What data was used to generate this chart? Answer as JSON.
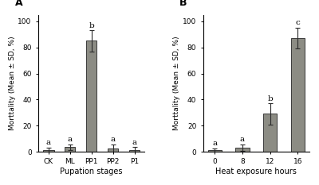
{
  "panel_A": {
    "categories": [
      "CK",
      "ML",
      "PP1",
      "PP2",
      "P1"
    ],
    "values": [
      1.0,
      3.5,
      85.0,
      2.5,
      1.5
    ],
    "errors": [
      2.0,
      2.2,
      8.0,
      3.0,
      2.0
    ],
    "letters": [
      "a",
      "a",
      "b",
      "a",
      "a"
    ],
    "xlabel": "Pupation stages",
    "ylabel": "Morttality (Mean ± SD, %)",
    "panel_label": "A",
    "ylim": [
      0,
      105
    ],
    "yticks": [
      0,
      20,
      40,
      60,
      80,
      100
    ]
  },
  "panel_B": {
    "categories": [
      "0",
      "8",
      "12",
      "16"
    ],
    "values": [
      1.0,
      3.0,
      29.0,
      87.0
    ],
    "errors": [
      1.5,
      2.5,
      8.0,
      8.0
    ],
    "letters": [
      "a",
      "a",
      "b",
      "c"
    ],
    "xlabel": "Heat exposure hours",
    "ylabel": "Morttality (Mean ± SD, %)",
    "panel_label": "B",
    "ylim": [
      0,
      105
    ],
    "yticks": [
      0,
      20,
      40,
      60,
      80,
      100
    ]
  },
  "bar_color": "#8C8C84",
  "bar_edgecolor": "#3a3a3a",
  "bar_width": 0.5,
  "background_color": "#ffffff",
  "tick_font_size": 6.5,
  "letter_font_size": 7.5,
  "panel_label_font_size": 9,
  "xlabel_font_size": 7.0,
  "ylabel_font_size": 6.5
}
